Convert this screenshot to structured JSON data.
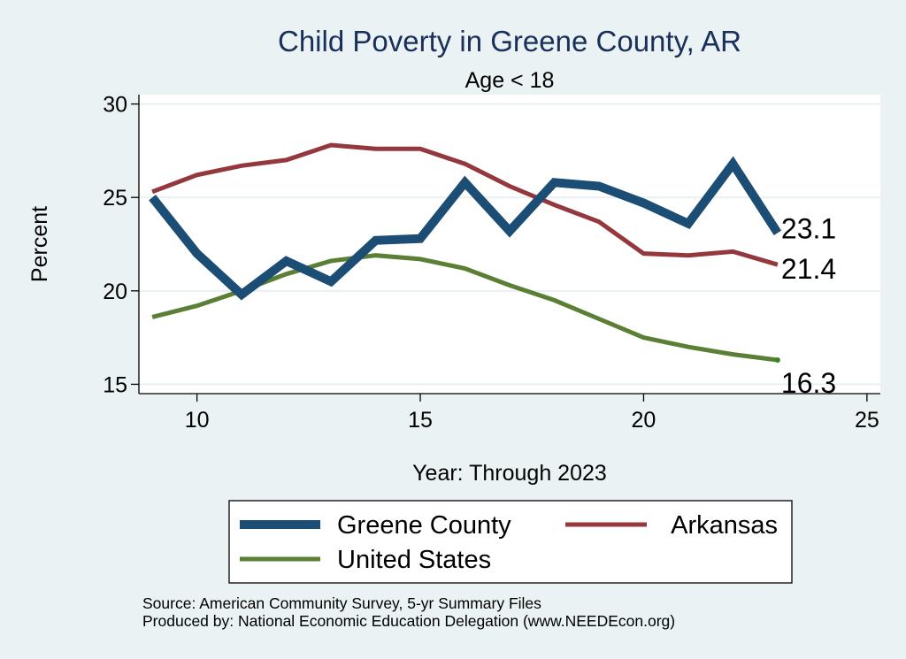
{
  "chart_data": {
    "type": "line",
    "title": "Child Poverty in Greene County, AR",
    "subtitle": "Age < 18",
    "xlabel": "Year: Through 2023",
    "ylabel": "Percent",
    "xlim": [
      8.7,
      25.3
    ],
    "ylim": [
      14.5,
      30.5
    ],
    "xticks": [
      10,
      15,
      20,
      25
    ],
    "yticks": [
      15,
      20,
      25,
      30
    ],
    "x": [
      9,
      10,
      11,
      12,
      13,
      14,
      15,
      16,
      17,
      18,
      19,
      20,
      21,
      22,
      23
    ],
    "series": [
      {
        "name": "Greene County",
        "color": "#1b4d75",
        "values": [
          25.0,
          22.0,
          19.8,
          21.6,
          20.5,
          22.7,
          22.8,
          25.8,
          23.2,
          25.8,
          25.6,
          24.7,
          23.6,
          26.8,
          23.1
        ],
        "end_label": "23.1"
      },
      {
        "name": "Arkansas",
        "color": "#94383d",
        "values": [
          25.3,
          26.2,
          26.7,
          27.0,
          27.8,
          27.6,
          27.6,
          26.8,
          25.6,
          24.6,
          23.7,
          22.0,
          21.9,
          22.1,
          21.4
        ],
        "end_label": "21.4"
      },
      {
        "name": "United States",
        "color": "#5b7f34",
        "values": [
          18.6,
          19.2,
          20.0,
          20.9,
          21.6,
          21.9,
          21.7,
          21.2,
          20.3,
          19.5,
          18.5,
          17.5,
          17.0,
          16.6,
          16.3
        ],
        "end_label": "16.3"
      }
    ],
    "legend": [
      "Greene County",
      "Arkansas",
      "United States"
    ],
    "source_note": "Source: American Community Survey, 5-yr Summary Files",
    "producer_note": "Produced by: National Economic Education Delegation (www.NEEDEcon.org)"
  }
}
